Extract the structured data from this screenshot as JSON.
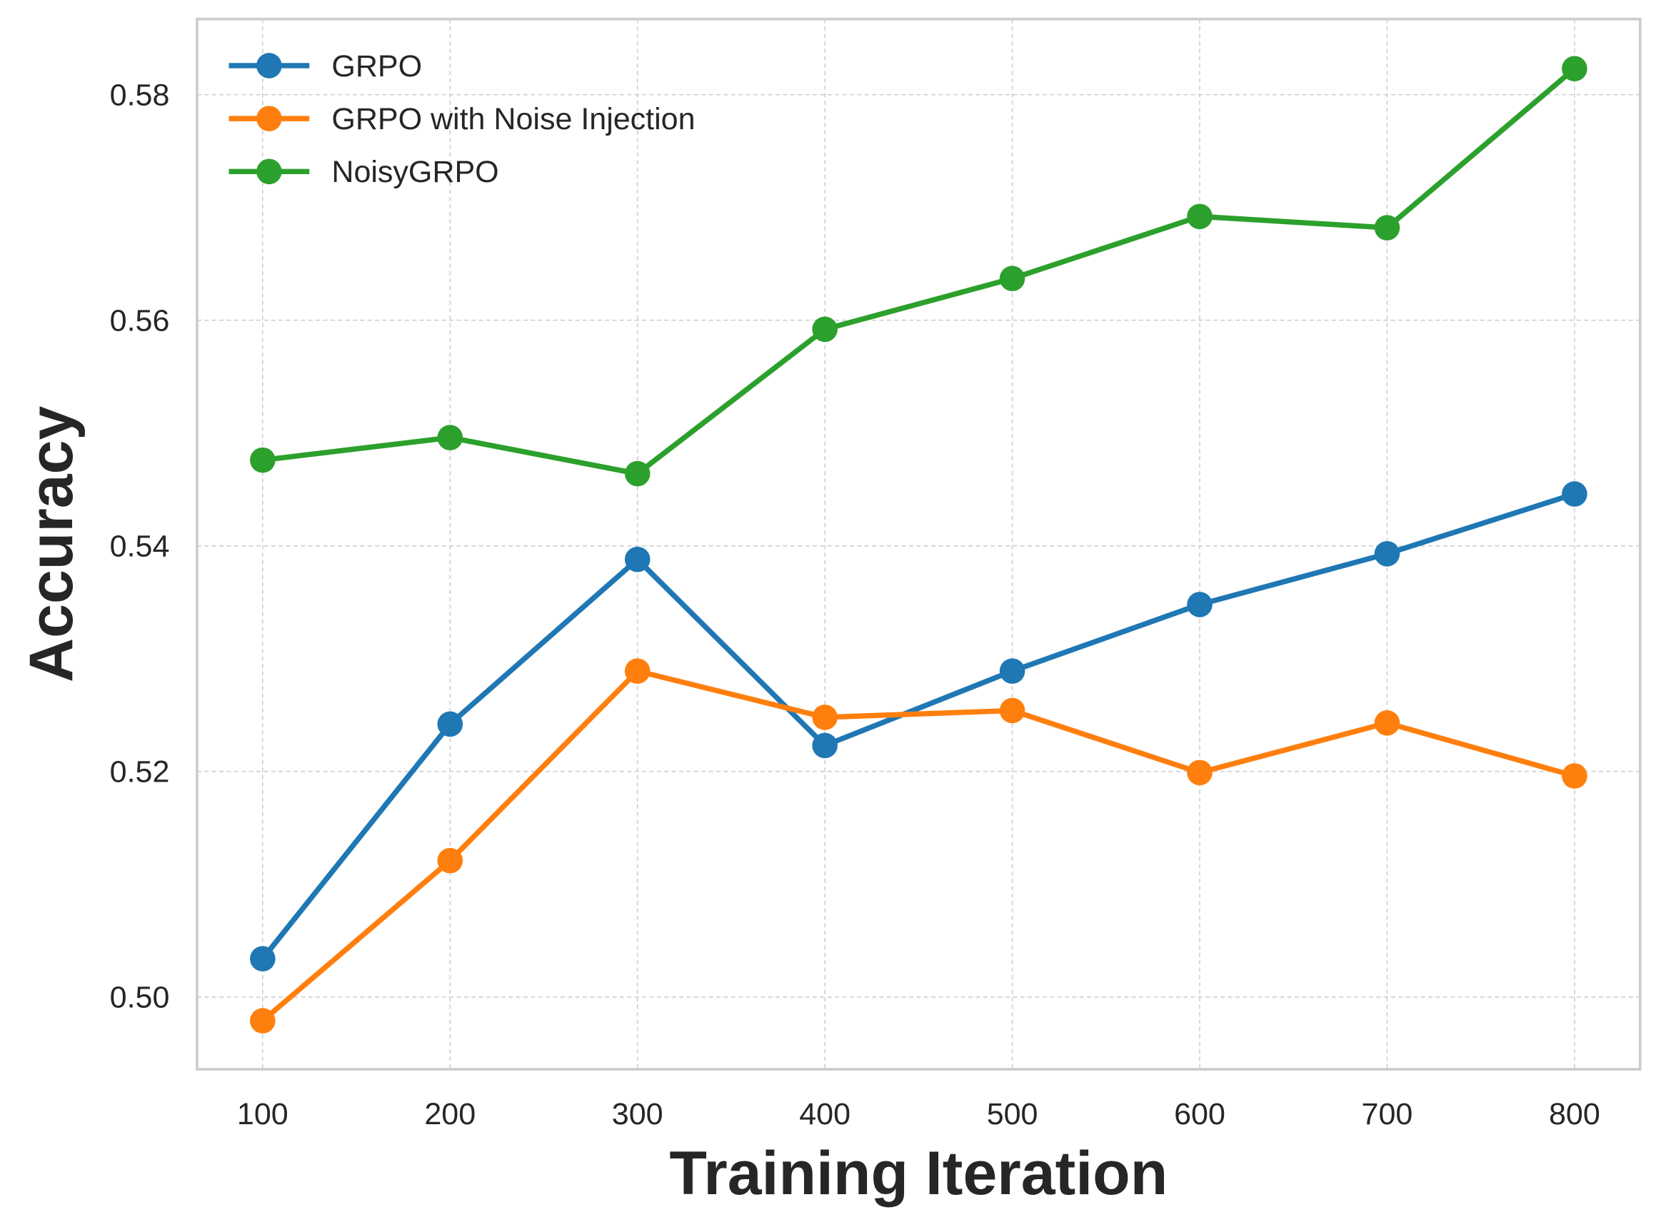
{
  "chart_data": {
    "type": "line",
    "title": "",
    "xlabel": "Training Iteration",
    "ylabel": "Accuracy",
    "x": [
      100,
      200,
      300,
      400,
      500,
      600,
      700,
      800
    ],
    "xticks": [
      "100",
      "200",
      "300",
      "400",
      "500",
      "600",
      "700",
      "800"
    ],
    "yticks": [
      "0.50",
      "0.52",
      "0.54",
      "0.56",
      "0.58"
    ],
    "xlim": [
      65,
      835
    ],
    "ylim": [
      0.4936,
      0.5867
    ],
    "grid": true,
    "legend_position": "top-left",
    "series": [
      {
        "name": "GRPO",
        "color": "#1f77b4",
        "values": [
          0.5034,
          0.5242,
          0.5388,
          0.5223,
          0.5289,
          0.5348,
          0.5393,
          0.5446
        ]
      },
      {
        "name": "GRPO with Noise Injection",
        "color": "#ff7f0e",
        "values": [
          0.4979,
          0.5121,
          0.5289,
          0.5248,
          0.5254,
          0.5199,
          0.5243,
          0.5196
        ]
      },
      {
        "name": "NoisyGRPO",
        "color": "#2ca02c",
        "values": [
          0.5476,
          0.5496,
          0.5464,
          0.5592,
          0.5637,
          0.5692,
          0.5682,
          0.5823
        ]
      }
    ]
  }
}
